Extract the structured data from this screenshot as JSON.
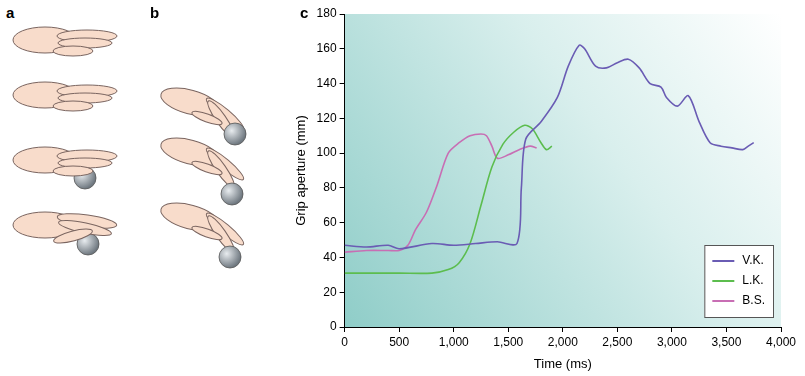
{
  "panel_labels": [
    "a",
    "b",
    "c"
  ],
  "chart_data": {
    "type": "line",
    "xlabel": "Time (ms)",
    "ylabel": "Grip aperture (mm)",
    "xlim": [
      0,
      4000
    ],
    "xticks": [
      0,
      500,
      {
        "value": 1000,
        "label": "1,000"
      },
      {
        "value": 1500,
        "label": "1,500"
      },
      {
        "value": 2000,
        "label": "2,000"
      },
      {
        "value": 2500,
        "label": "2,500"
      },
      {
        "value": 3000,
        "label": "3,000"
      },
      {
        "value": 3500,
        "label": "3,500"
      },
      {
        "value": 4000,
        "label": "4,000"
      }
    ],
    "ylim": [
      0,
      180
    ],
    "yticks": [
      0,
      20,
      40,
      60,
      80,
      100,
      120,
      140,
      160,
      180
    ],
    "grid": false,
    "legend": "lower right",
    "series": [
      {
        "name": "V.K.",
        "color": "#6a5cb4",
        "x": [
          0,
          200,
          400,
          500,
          800,
          1000,
          1200,
          1400,
          1580,
          1620,
          1660,
          1800,
          1950,
          2050,
          2150,
          2200,
          2300,
          2400,
          2500,
          2600,
          2700,
          2800,
          2900,
          2950,
          3050,
          3150,
          3250,
          3350,
          3450,
          3550,
          3650,
          3700,
          3750
        ],
        "values": [
          47,
          46,
          47,
          45,
          48,
          47,
          48,
          49,
          48,
          80,
          108,
          118,
          132,
          150,
          162,
          160,
          150,
          149,
          152,
          154,
          149,
          140,
          138,
          132,
          127,
          133,
          118,
          106,
          104,
          103,
          102,
          104,
          106
        ]
      },
      {
        "name": "L.K.",
        "color": "#5cbd4e",
        "x": [
          0,
          500,
          800,
          950,
          1050,
          1150,
          1250,
          1350,
          1450,
          1550,
          1650,
          1720,
          1800,
          1850,
          1900
        ],
        "values": [
          31,
          31,
          31,
          33,
          37,
          48,
          70,
          92,
          105,
          112,
          116,
          114,
          106,
          102,
          104
        ]
      },
      {
        "name": "B.S.",
        "color": "#c86eb4",
        "x": [
          0,
          200,
          400,
          500,
          580,
          650,
          750,
          850,
          950,
          1050,
          1150,
          1250,
          1300,
          1350,
          1400,
          1500,
          1600,
          1700,
          1760
        ],
        "values": [
          43,
          44,
          44,
          44,
          47,
          56,
          66,
          82,
          100,
          106,
          110,
          111,
          110,
          104,
          97,
          99,
          102,
          104,
          103
        ]
      }
    ]
  }
}
